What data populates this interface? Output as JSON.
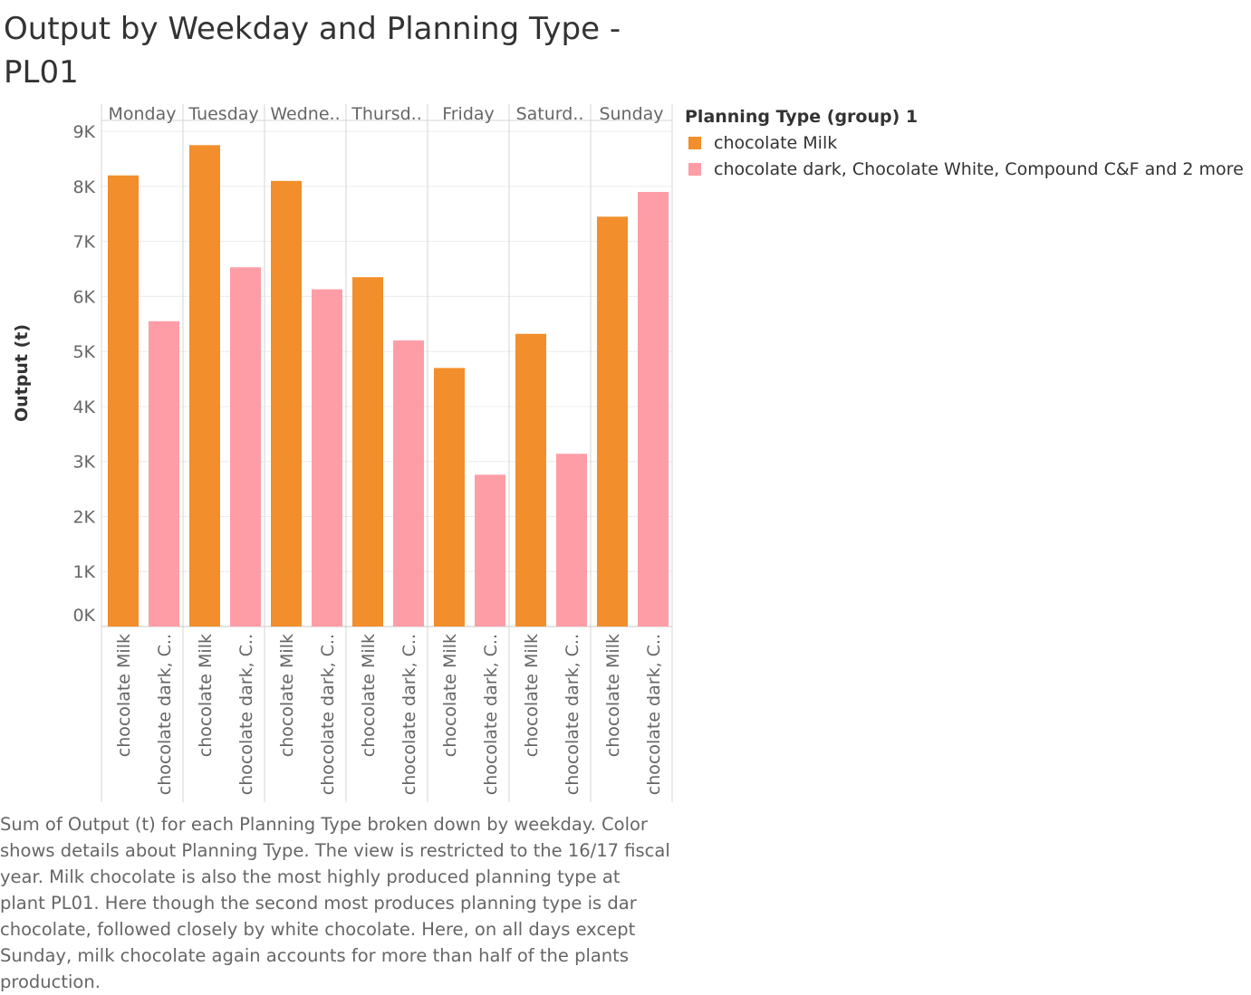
{
  "title": "Output by Weekday and Planning Type - PL01",
  "chart_data": {
    "type": "bar",
    "title": "Output by Weekday and Planning Type - PL01",
    "ylabel": "Output (t)",
    "xlabel": "",
    "ylim": [
      0,
      9200
    ],
    "y_ticks": [
      0,
      1000,
      2000,
      3000,
      4000,
      5000,
      6000,
      7000,
      8000,
      9000
    ],
    "y_tick_labels": [
      "0K",
      "1K",
      "2K",
      "3K",
      "4K",
      "5K",
      "6K",
      "7K",
      "8K",
      "9K"
    ],
    "grid": true,
    "legend_position": "right",
    "categories": [
      "Monday",
      "Tuesday",
      "Wedne..",
      "Thursd..",
      "Friday",
      "Saturd..",
      "Sunday"
    ],
    "category_tick_labels": [
      "chocolate Milk",
      "chocolate dark, C.."
    ],
    "series": [
      {
        "name": "chocolate Milk",
        "color": "#f28e2b",
        "values": [
          8200,
          8750,
          8100,
          6350,
          4700,
          5320,
          7450
        ]
      },
      {
        "name": "chocolate dark, Chocolate White, Compound C&F and 2 more",
        "color": "#ff9da7",
        "values": [
          5550,
          6530,
          6130,
          5200,
          2760,
          3140,
          7900
        ]
      }
    ]
  },
  "legend": {
    "title": "Planning Type (group) 1",
    "items": [
      {
        "label": "chocolate Milk",
        "color": "#f28e2b"
      },
      {
        "label": "chocolate dark, Chocolate White, Compound C&F and 2 more",
        "color": "#ff9da7"
      }
    ]
  },
  "caption": "Sum of Output (t) for each Planning Type broken down by weekday.  Color shows details about Planning Type. The view is restricted to the 16/17 fiscal year. Milk chocolate is also the most highly produced planning type at plant PL01. Here though the second most produces planning type is dar chocolate, followed closely by white chocolate. Here, on all days except Sunday, milk chocolate again accounts for more than half of the plants production."
}
